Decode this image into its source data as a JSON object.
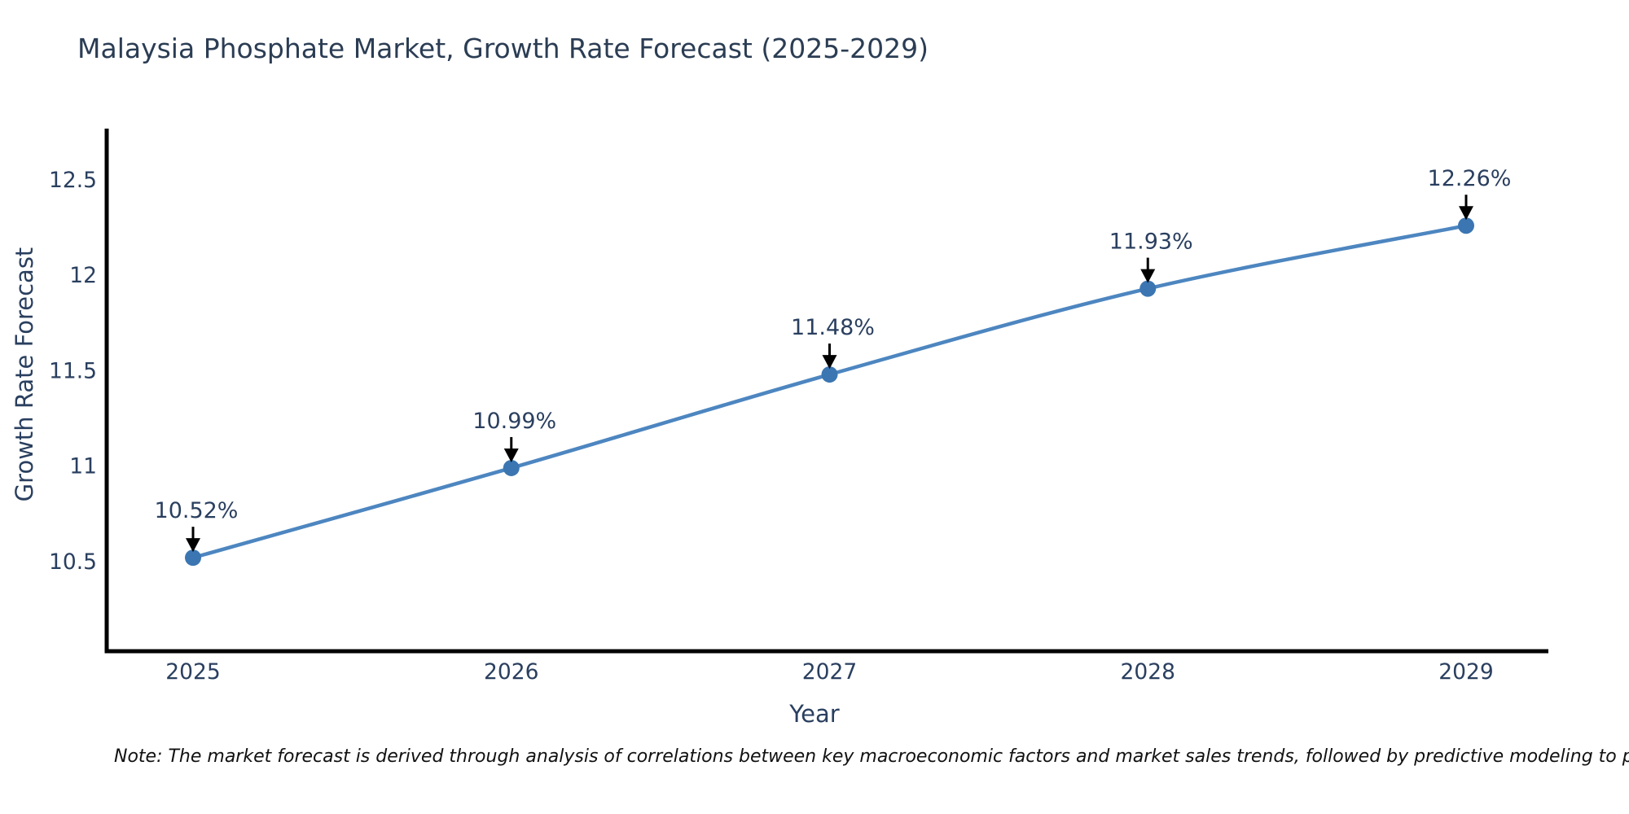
{
  "note": {
    "text": "Note: The market forecast is derived through analysis of correlations between key macroeconomic factors and market sales trends, followed by predictive modeling to project future sal"
  },
  "chart_data": {
    "type": "line",
    "title": "Malaysia Phosphate Market, Growth Rate Forecast (2025-2029)",
    "xlabel": "Year",
    "ylabel": "Growth Rate Forecast",
    "x": [
      2025,
      2026,
      2027,
      2028,
      2029
    ],
    "y": [
      10.52,
      10.99,
      11.48,
      11.93,
      12.26
    ],
    "point_labels": [
      "10.52%",
      "10.99%",
      "11.48%",
      "11.93%",
      "12.26%"
    ],
    "x_tick_labels": [
      "2025",
      "2026",
      "2027",
      "2028",
      "2029"
    ],
    "y_ticks": [
      10.5,
      11,
      11.5,
      12,
      12.5
    ],
    "y_tick_labels": [
      "10.5",
      "11",
      "11.5",
      "12",
      "12.5"
    ],
    "ylim": [
      10.03,
      12.76
    ],
    "grid": false,
    "legend": "none",
    "line_color": "#4d86c0",
    "marker_color": "#3b76b2",
    "annotation_arrow_color": "#000000",
    "axis_line_color": "#000000",
    "text_color": "#2a3f5f"
  }
}
